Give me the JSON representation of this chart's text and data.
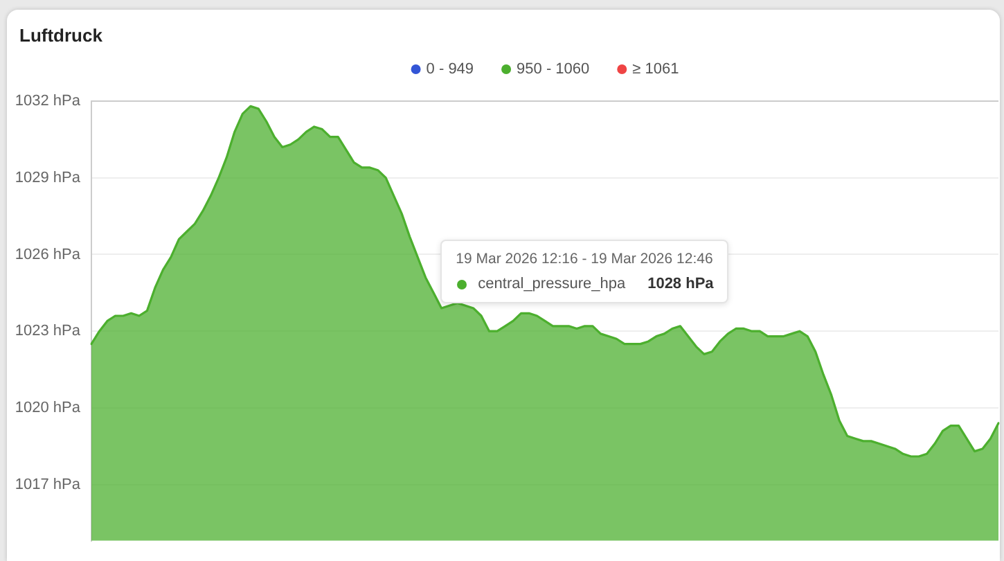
{
  "chart_data": {
    "type": "area",
    "title": "Luftdruck",
    "annotations": [
      "19 Mar 2026 12:16 - 19 Mar 2026 12:46",
      "central_pressure_hpa",
      "1028 hPa"
    ],
    "categories": [
      null,
      null,
      null,
      null,
      null,
      null,
      null,
      null,
      null,
      null,
      null,
      null,
      null,
      null,
      null,
      null,
      null,
      null,
      null,
      null,
      null,
      null,
      null,
      null,
      null,
      null,
      null,
      null,
      null,
      null,
      null,
      null,
      null,
      null,
      null,
      null,
      null,
      null,
      null,
      null,
      null,
      null,
      null,
      null,
      null,
      null,
      null,
      null,
      null,
      null,
      null,
      null,
      null,
      null,
      null,
      null,
      null,
      null,
      null,
      null,
      null,
      null,
      null,
      null,
      null,
      null,
      null,
      null,
      null,
      null,
      null,
      null,
      null,
      null,
      null,
      null,
      null,
      null,
      null,
      null,
      null,
      null,
      null,
      null,
      null,
      null,
      null,
      null,
      null,
      null,
      null,
      null,
      null,
      null,
      null,
      null,
      null,
      null,
      null,
      null,
      null,
      null,
      null,
      null,
      null,
      null,
      null,
      null,
      null,
      null,
      null,
      null,
      null,
      null,
      null
    ],
    "series": [
      {
        "name": "0 - 949",
        "color": "#3355d6",
        "values": [
          null,
          null,
          null,
          null,
          null,
          null,
          null,
          null,
          null,
          null,
          null,
          null,
          null,
          null,
          null,
          null,
          null,
          null,
          null,
          null,
          null,
          null,
          null,
          null,
          null,
          null,
          null,
          null,
          null,
          null,
          null,
          null,
          null,
          null,
          null,
          null,
          null,
          null,
          null,
          null,
          null,
          null,
          null,
          null,
          null,
          null,
          null,
          null,
          null,
          null,
          null,
          null,
          null,
          null,
          null,
          null,
          null,
          null,
          null,
          null,
          null,
          null,
          null,
          null,
          null,
          null,
          null,
          null,
          null,
          null,
          null,
          null,
          null,
          null,
          null,
          null,
          null,
          null,
          null,
          null,
          null,
          null,
          null,
          null,
          null,
          null,
          null,
          null,
          null,
          null,
          null,
          null,
          null,
          null,
          null,
          null,
          null,
          null,
          null,
          null,
          null,
          null,
          null,
          null,
          null,
          null,
          null,
          null,
          null,
          null,
          null,
          null,
          null,
          null,
          null
        ]
      },
      {
        "name": "950 - 1060",
        "color": "#4caf2e",
        "values": [
          1022.5,
          1023.0,
          1023.4,
          1023.6,
          1023.6,
          1023.7,
          1023.6,
          1023.8,
          1024.7,
          1025.4,
          1025.9,
          1026.6,
          1026.9,
          1027.2,
          1027.7,
          1028.3,
          1029.0,
          1029.8,
          1030.8,
          1031.5,
          1031.8,
          1031.7,
          1031.2,
          1030.6,
          1030.2,
          1030.3,
          1030.5,
          1030.8,
          1031.0,
          1030.9,
          1030.6,
          1030.6,
          1030.1,
          1029.6,
          1029.4,
          1029.4,
          1029.3,
          1029.0,
          1028.3,
          1027.6,
          1026.7,
          1025.9,
          1025.1,
          1024.5,
          1023.9,
          1024.0,
          1024.1,
          1024.0,
          1023.9,
          1023.6,
          1023.0,
          1023.0,
          1023.2,
          1023.4,
          1023.7,
          1023.7,
          1023.6,
          1023.4,
          1023.2,
          1023.2,
          1023.2,
          1023.1,
          1023.2,
          1023.2,
          1022.9,
          1022.8,
          1022.7,
          1022.5,
          1022.5,
          1022.5,
          1022.6,
          1022.8,
          1022.9,
          1023.1,
          1023.2,
          1022.8,
          1022.4,
          1022.1,
          1022.2,
          1022.6,
          1022.9,
          1023.1,
          1023.1,
          1023.0,
          1023.0,
          1022.8,
          1022.8,
          1022.8,
          1022.9,
          1023.0,
          1022.8,
          1022.2,
          1021.3,
          1020.5,
          1019.5,
          1018.9,
          1018.8,
          1018.7,
          1018.7,
          1018.6,
          1018.5,
          1018.4,
          1018.2,
          1018.1,
          1018.1,
          1018.2,
          1018.6,
          1019.1,
          1019.3,
          1019.3,
          1018.8,
          1018.3,
          1018.4,
          1018.8,
          1019.4
        ]
      },
      {
        "name": "≥ 1061",
        "color": "#ef4444",
        "values": [
          null,
          null,
          null,
          null,
          null,
          null,
          null,
          null,
          null,
          null,
          null,
          null,
          null,
          null,
          null,
          null,
          null,
          null,
          null,
          null,
          null,
          null,
          null,
          null,
          null,
          null,
          null,
          null,
          null,
          null,
          null,
          null,
          null,
          null,
          null,
          null,
          null,
          null,
          null,
          null,
          null,
          null,
          null,
          null,
          null,
          null,
          null,
          null,
          null,
          null,
          null,
          null,
          null,
          null,
          null,
          null,
          null,
          null,
          null,
          null,
          null,
          null,
          null,
          null,
          null,
          null,
          null,
          null,
          null,
          null,
          null,
          null,
          null,
          null,
          null,
          null,
          null,
          null,
          null,
          null,
          null,
          null,
          null,
          null,
          null,
          null,
          null,
          null,
          null,
          null,
          null,
          null,
          null,
          null,
          null,
          null,
          null,
          null,
          null,
          null,
          null,
          null,
          null,
          null,
          null,
          null,
          null,
          null,
          null,
          null,
          null,
          null,
          null,
          null,
          null
        ]
      }
    ],
    "ylim": [
      1014.8,
      1032
    ],
    "yticks": [
      {
        "value": 1017,
        "label": "1017 hPa"
      },
      {
        "value": 1020,
        "label": "1020 hPa"
      },
      {
        "value": 1023,
        "label": "1023 hPa"
      },
      {
        "value": 1026,
        "label": "1026 hPa"
      },
      {
        "value": 1029,
        "label": "1029 hPa"
      },
      {
        "value": 1032,
        "label": "1032 hPa"
      }
    ],
    "grid": "y",
    "legend": "top"
  }
}
